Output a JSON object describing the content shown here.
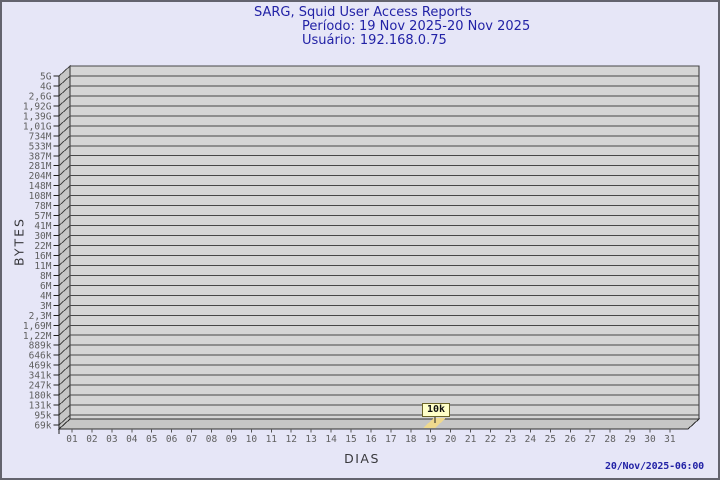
{
  "header": {
    "title": "SARG, Squid User Access Reports",
    "period": "Período: 19 Nov 2025-20 Nov 2025",
    "user": "Usuário: 192.168.0.75"
  },
  "chart": {
    "ylabel": "BYTES",
    "xlabel": "DIAS",
    "flag": {
      "label": "10k",
      "day": "19"
    }
  },
  "footer": {
    "timestamp": "20/Nov/2025-06:00"
  },
  "colors": {
    "bg": "#e6e6f7",
    "frame-border": "#63636e",
    "title-ink": "#2222a6",
    "tick-ink": "#606060",
    "axis-title-ink": "#38383c",
    "plot-fill": "#d5d5d5",
    "wall-fill": "#c6c6c6",
    "floor-fill": "#c6c6c6",
    "grid-line": "#474747",
    "plot-edge": "#2e2e2e",
    "flag-bg": "#ffffc8",
    "flag-border": "#6b6428",
    "flag-pointer": "#efd98e"
  },
  "chart_data": {
    "type": "bar",
    "title": "SARG, Squid User Access Reports",
    "subtitle": [
      "Período: 19 Nov 2025-20 Nov 2025",
      "Usuário: 192.168.0.75"
    ],
    "xlabel": "DIAS",
    "ylabel": "BYTES",
    "y_scale": "log",
    "grid": true,
    "x_tick_labels": [
      "01",
      "02",
      "03",
      "04",
      "05",
      "06",
      "07",
      "08",
      "09",
      "10",
      "11",
      "12",
      "13",
      "14",
      "15",
      "16",
      "17",
      "18",
      "19",
      "20",
      "21",
      "22",
      "23",
      "24",
      "25",
      "26",
      "27",
      "28",
      "29",
      "30",
      "31"
    ],
    "y_tick_labels": [
      "5G",
      "4G",
      "2,6G",
      "1,92G",
      "1,39G",
      "1,01G",
      "734M",
      "533M",
      "387M",
      "281M",
      "204M",
      "148M",
      "108M",
      "78M",
      "57M",
      "41M",
      "30M",
      "22M",
      "16M",
      "11M",
      "8M",
      "6M",
      "4M",
      "3M",
      "2,3M",
      "1,69M",
      "1,22M",
      "889k",
      "646k",
      "469k",
      "341k",
      "247k",
      "180k",
      "131k",
      "95k",
      "69k"
    ],
    "series": [
      {
        "name": "192.168.0.75",
        "points": [
          {
            "x": "19",
            "y_label": "10k",
            "bytes": 10000
          }
        ]
      }
    ],
    "annotations": [
      {
        "x": "19",
        "label": "10k"
      }
    ],
    "footer_timestamp": "20/Nov/2025-06:00"
  }
}
